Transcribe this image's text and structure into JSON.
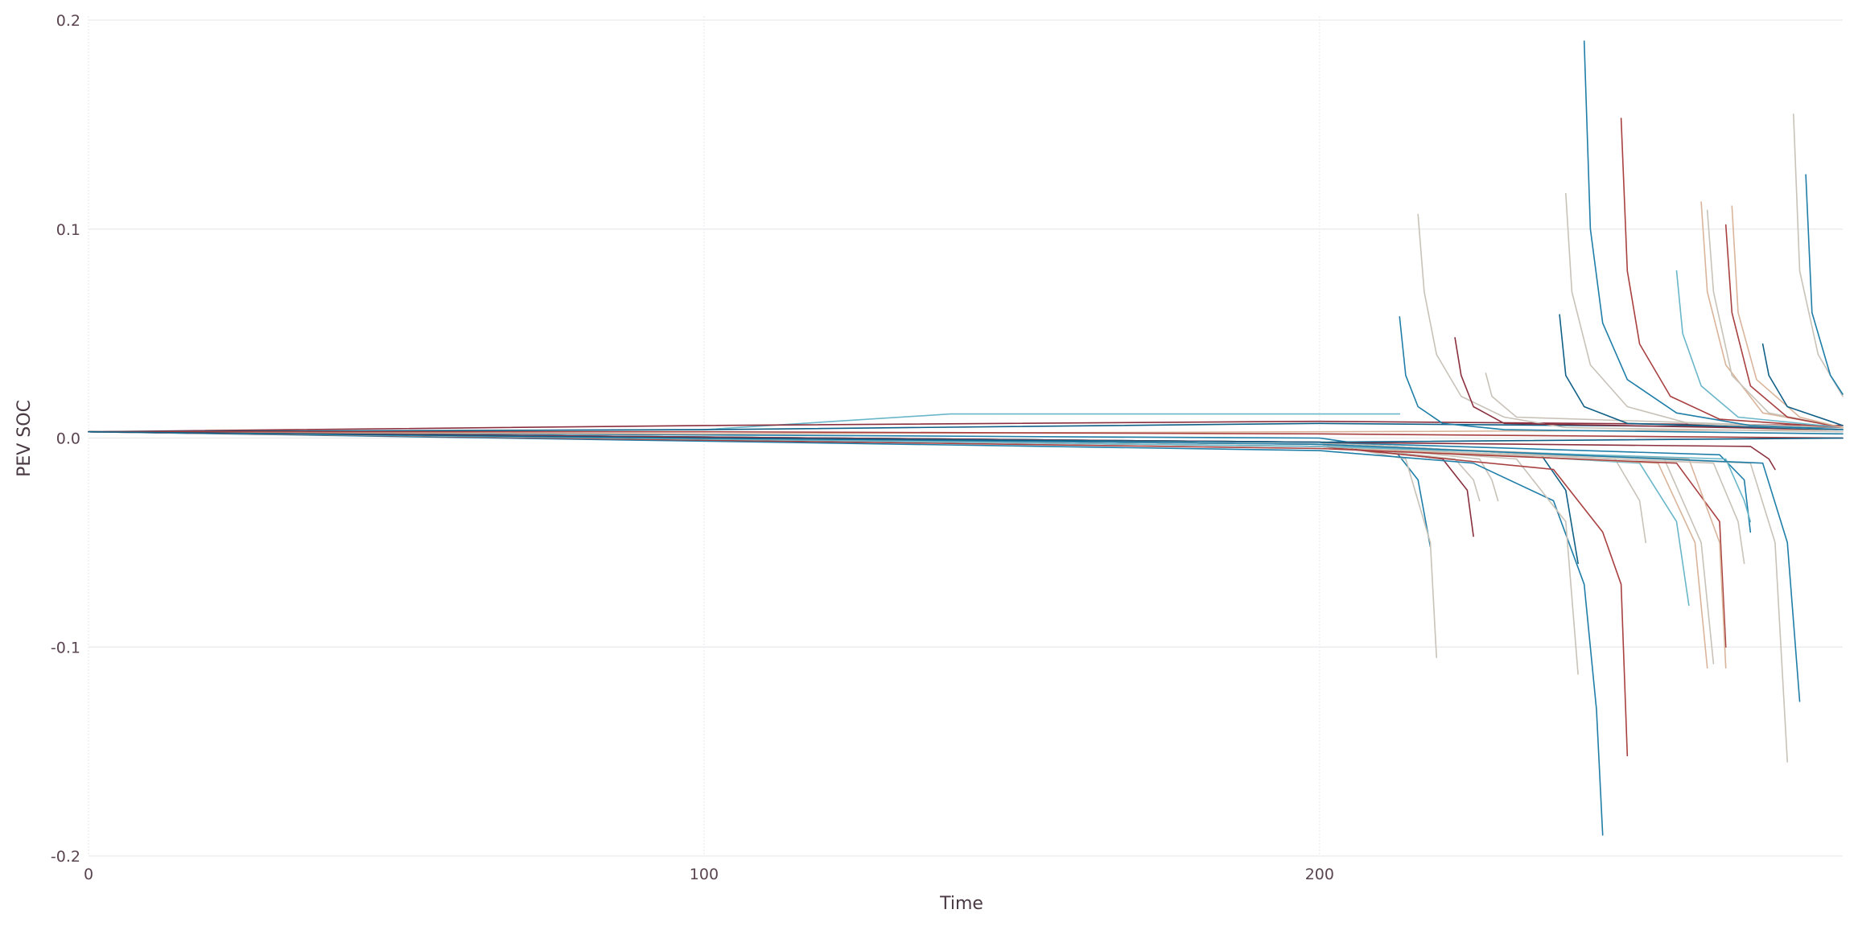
{
  "chart_data": {
    "type": "line",
    "title": "",
    "xlabel": "Time",
    "ylabel": "PEV SOC",
    "xlim": [
      0,
      285
    ],
    "ylim": [
      -0.2,
      0.2
    ],
    "x_ticks": [
      0,
      100,
      200
    ],
    "x_tick_labels": [
      "0",
      "100",
      "200"
    ],
    "y_ticks": [
      0.2,
      0.1,
      0.0,
      -0.1,
      -0.2
    ],
    "y_tick_labels": [
      "0.2",
      "0.1",
      "0.0",
      "-0.1",
      "-0.2"
    ],
    "grid": true,
    "legend": "none",
    "palette": [
      "#1f7ea8",
      "#c8c2b8",
      "#a84040",
      "#d9b49a",
      "#6ab6c9",
      "#8a2f3d",
      "#0f5f86"
    ],
    "series": [
      {
        "color": "#1f7ea8",
        "points": [
          [
            0,
            0.003
          ],
          [
            200,
            0.0
          ],
          [
            212,
            -0.005
          ],
          [
            216,
            -0.02
          ],
          [
            218,
            -0.052
          ]
        ]
      },
      {
        "color": "#c8c2b8",
        "points": [
          [
            0,
            0.003
          ],
          [
            200,
            -0.002
          ],
          [
            214,
            -0.01
          ],
          [
            218,
            -0.05
          ],
          [
            219,
            -0.105
          ]
        ]
      },
      {
        "color": "#8a2f3d",
        "points": [
          [
            0,
            0.003
          ],
          [
            200,
            -0.003
          ],
          [
            220,
            -0.01
          ],
          [
            224,
            -0.025
          ],
          [
            225,
            -0.047
          ]
        ]
      },
      {
        "color": "#c8c2b8",
        "points": [
          [
            0,
            0.003
          ],
          [
            200,
            -0.003
          ],
          [
            222,
            -0.01
          ],
          [
            225,
            -0.02
          ],
          [
            226,
            -0.03
          ]
        ]
      },
      {
        "color": "#c8c2b8",
        "points": [
          [
            0,
            0.003
          ],
          [
            200,
            -0.002
          ],
          [
            226,
            -0.01
          ],
          [
            228,
            -0.02
          ],
          [
            229,
            -0.03
          ]
        ]
      },
      {
        "color": "#1f7ea8",
        "points": [
          [
            0,
            0.003
          ],
          [
            200,
            -0.006
          ],
          [
            225,
            -0.012
          ],
          [
            238,
            -0.03
          ],
          [
            243,
            -0.07
          ],
          [
            245,
            -0.13
          ],
          [
            246,
            -0.19
          ]
        ]
      },
      {
        "color": "#c8c2b8",
        "points": [
          [
            0,
            0.003
          ],
          [
            200,
            -0.003
          ],
          [
            232,
            -0.01
          ],
          [
            240,
            -0.04
          ],
          [
            242,
            -0.113
          ]
        ]
      },
      {
        "color": "#0f5f86",
        "points": [
          [
            0,
            0.003
          ],
          [
            200,
            -0.002
          ],
          [
            236,
            -0.008
          ],
          [
            240,
            -0.025
          ],
          [
            242,
            -0.06
          ]
        ]
      },
      {
        "color": "#a84040",
        "points": [
          [
            0,
            0.003
          ],
          [
            200,
            -0.004
          ],
          [
            238,
            -0.015
          ],
          [
            246,
            -0.045
          ],
          [
            249,
            -0.07
          ],
          [
            250,
            -0.152
          ]
        ]
      },
      {
        "color": "#c8c2b8",
        "points": [
          [
            0,
            0.003
          ],
          [
            200,
            -0.002
          ],
          [
            248,
            -0.01
          ],
          [
            252,
            -0.03
          ],
          [
            253,
            -0.05
          ]
        ]
      },
      {
        "color": "#6ab6c9",
        "points": [
          [
            0,
            0.003
          ],
          [
            200,
            -0.003
          ],
          [
            252,
            -0.012
          ],
          [
            258,
            -0.04
          ],
          [
            260,
            -0.08
          ]
        ]
      },
      {
        "color": "#d9b49a",
        "points": [
          [
            0,
            0.003
          ],
          [
            200,
            -0.004
          ],
          [
            255,
            -0.012
          ],
          [
            261,
            -0.05
          ],
          [
            263,
            -0.11
          ]
        ]
      },
      {
        "color": "#c8c2b8",
        "points": [
          [
            0,
            0.003
          ],
          [
            200,
            -0.003
          ],
          [
            256,
            -0.01
          ],
          [
            262,
            -0.05
          ],
          [
            264,
            -0.108
          ]
        ]
      },
      {
        "color": "#a84040",
        "points": [
          [
            0,
            0.003
          ],
          [
            200,
            -0.005
          ],
          [
            258,
            -0.012
          ],
          [
            265,
            -0.04
          ],
          [
            266,
            -0.1
          ]
        ]
      },
      {
        "color": "#d9b49a",
        "points": [
          [
            0,
            0.003
          ],
          [
            200,
            -0.003
          ],
          [
            260,
            -0.01
          ],
          [
            265,
            -0.05
          ],
          [
            266,
            -0.11
          ]
        ]
      },
      {
        "color": "#c8c2b8",
        "points": [
          [
            0,
            0.003
          ],
          [
            200,
            -0.004
          ],
          [
            264,
            -0.012
          ],
          [
            268,
            -0.04
          ],
          [
            269,
            -0.06
          ]
        ]
      },
      {
        "color": "#1f7ea8",
        "points": [
          [
            0,
            0.003
          ],
          [
            200,
            -0.002
          ],
          [
            265,
            -0.008
          ],
          [
            269,
            -0.02
          ],
          [
            270,
            -0.045
          ]
        ]
      },
      {
        "color": "#6ab6c9",
        "points": [
          [
            0,
            0.003
          ],
          [
            200,
            -0.004
          ],
          [
            266,
            -0.01
          ],
          [
            269,
            -0.03
          ],
          [
            270,
            -0.04
          ]
        ]
      },
      {
        "color": "#c8c2b8",
        "points": [
          [
            0,
            0.003
          ],
          [
            200,
            -0.003
          ],
          [
            270,
            -0.012
          ],
          [
            274,
            -0.05
          ],
          [
            276,
            -0.155
          ]
        ]
      },
      {
        "color": "#1f7ea8",
        "points": [
          [
            0,
            0.003
          ],
          [
            200,
            -0.003
          ],
          [
            272,
            -0.012
          ],
          [
            276,
            -0.05
          ],
          [
            278,
            -0.126
          ]
        ]
      },
      {
        "color": "#8a2f3d",
        "points": [
          [
            0,
            0.003
          ],
          [
            200,
            -0.002
          ],
          [
            270,
            -0.004
          ],
          [
            273,
            -0.01
          ],
          [
            274,
            -0.015
          ]
        ]
      },
      {
        "color": "#6ab6c9",
        "points": [
          [
            0,
            0.003
          ],
          [
            100,
            0.004
          ],
          [
            140,
            0.0115
          ],
          [
            213,
            0.0115
          ]
        ]
      },
      {
        "color": "#8a2f3d",
        "points": [
          [
            0,
            0.003
          ],
          [
            100,
            0.006
          ],
          [
            200,
            0.008
          ],
          [
            285,
            0.006
          ]
        ]
      },
      {
        "color": "#0f5f86",
        "points": [
          [
            0,
            0.003
          ],
          [
            100,
            0.004
          ],
          [
            200,
            0.007
          ],
          [
            285,
            0.005
          ]
        ]
      },
      {
        "color": "#d9b49a",
        "points": [
          [
            0,
            0.003
          ],
          [
            100,
            0.002
          ],
          [
            200,
            0.003
          ],
          [
            285,
            0.004
          ]
        ]
      },
      {
        "color": "#a84040",
        "points": [
          [
            0,
            0.003
          ],
          [
            100,
            0.003
          ],
          [
            200,
            0.002
          ],
          [
            285,
            0.0
          ]
        ]
      },
      {
        "color": "#0f5f86",
        "points": [
          [
            0,
            0.003
          ],
          [
            100,
            0.0
          ],
          [
            200,
            -0.002
          ],
          [
            285,
            0.0
          ]
        ]
      },
      {
        "color": "#1f7ea8",
        "points": [
          [
            213,
            0.058
          ],
          [
            214,
            0.03
          ],
          [
            216,
            0.015
          ],
          [
            220,
            0.007
          ],
          [
            230,
            0.004
          ],
          [
            285,
            0.002
          ]
        ]
      },
      {
        "color": "#c8c2b8",
        "points": [
          [
            216,
            0.107
          ],
          [
            217,
            0.07
          ],
          [
            219,
            0.04
          ],
          [
            223,
            0.02
          ],
          [
            230,
            0.01
          ],
          [
            240,
            0.005
          ],
          [
            285,
            0.003
          ]
        ]
      },
      {
        "color": "#8a2f3d",
        "points": [
          [
            222,
            0.048
          ],
          [
            223,
            0.03
          ],
          [
            225,
            0.015
          ],
          [
            230,
            0.007
          ],
          [
            285,
            0.004
          ]
        ]
      },
      {
        "color": "#c8c2b8",
        "points": [
          [
            227,
            0.031
          ],
          [
            228,
            0.02
          ],
          [
            232,
            0.01
          ],
          [
            285,
            0.005
          ]
        ]
      },
      {
        "color": "#0f5f86",
        "points": [
          [
            239,
            0.059
          ],
          [
            240,
            0.03
          ],
          [
            243,
            0.015
          ],
          [
            250,
            0.007
          ],
          [
            285,
            0.004
          ]
        ]
      },
      {
        "color": "#c8c2b8",
        "points": [
          [
            240,
            0.117
          ],
          [
            241,
            0.07
          ],
          [
            244,
            0.035
          ],
          [
            250,
            0.015
          ],
          [
            260,
            0.007
          ],
          [
            285,
            0.004
          ]
        ]
      },
      {
        "color": "#1f7ea8",
        "points": [
          [
            243,
            0.19
          ],
          [
            244,
            0.1
          ],
          [
            246,
            0.055
          ],
          [
            250,
            0.028
          ],
          [
            258,
            0.012
          ],
          [
            270,
            0.006
          ],
          [
            285,
            0.004
          ]
        ]
      },
      {
        "color": "#a84040",
        "points": [
          [
            249,
            0.153
          ],
          [
            250,
            0.08
          ],
          [
            252,
            0.045
          ],
          [
            257,
            0.02
          ],
          [
            265,
            0.009
          ],
          [
            285,
            0.005
          ]
        ]
      },
      {
        "color": "#6ab6c9",
        "points": [
          [
            258,
            0.08
          ],
          [
            259,
            0.05
          ],
          [
            262,
            0.025
          ],
          [
            268,
            0.01
          ],
          [
            285,
            0.005
          ]
        ]
      },
      {
        "color": "#d9b49a",
        "points": [
          [
            262,
            0.113
          ],
          [
            263,
            0.07
          ],
          [
            266,
            0.035
          ],
          [
            272,
            0.012
          ],
          [
            285,
            0.005
          ]
        ]
      },
      {
        "color": "#c8c2b8",
        "points": [
          [
            263,
            0.109
          ],
          [
            264,
            0.07
          ],
          [
            267,
            0.03
          ],
          [
            273,
            0.012
          ],
          [
            285,
            0.005
          ]
        ]
      },
      {
        "color": "#a84040",
        "points": [
          [
            266,
            0.102
          ],
          [
            267,
            0.06
          ],
          [
            270,
            0.025
          ],
          [
            276,
            0.01
          ],
          [
            285,
            0.005
          ]
        ]
      },
      {
        "color": "#d9b49a",
        "points": [
          [
            267,
            0.111
          ],
          [
            268,
            0.06
          ],
          [
            271,
            0.028
          ],
          [
            278,
            0.01
          ],
          [
            285,
            0.005
          ]
        ]
      },
      {
        "color": "#0f5f86",
        "points": [
          [
            272,
            0.045
          ],
          [
            273,
            0.03
          ],
          [
            276,
            0.015
          ],
          [
            285,
            0.006
          ]
        ]
      },
      {
        "color": "#c8c2b8",
        "points": [
          [
            277,
            0.155
          ],
          [
            278,
            0.08
          ],
          [
            281,
            0.04
          ],
          [
            285,
            0.02
          ]
        ]
      },
      {
        "color": "#1f7ea8",
        "points": [
          [
            279,
            0.126
          ],
          [
            280,
            0.06
          ],
          [
            283,
            0.03
          ],
          [
            285,
            0.021
          ]
        ]
      }
    ]
  }
}
